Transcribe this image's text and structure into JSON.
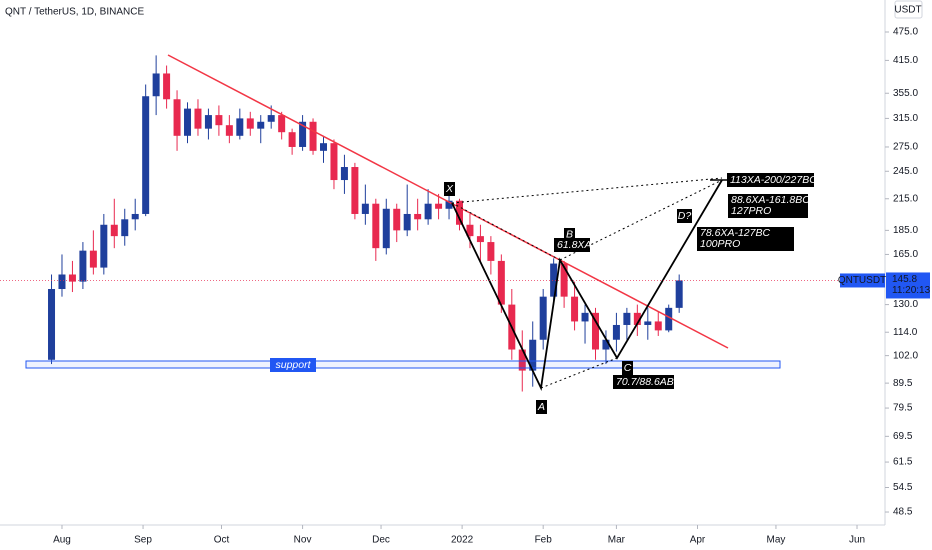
{
  "chart_data": {
    "type": "candlestick",
    "title": "QNT / TetherUS, 1D, BINANCE",
    "y_axis_label": "USDT",
    "log_scale": true,
    "grid": false,
    "up_color": "#1f3f9c",
    "down_color": "#e8294f",
    "x": [
      -4,
      0,
      4,
      8,
      12,
      16,
      20,
      24,
      28,
      32,
      36,
      40,
      44,
      48,
      52,
      56,
      60,
      64,
      68,
      72,
      76,
      80,
      84,
      88,
      92,
      96,
      100,
      104,
      108,
      112,
      116,
      120,
      124,
      128,
      132,
      136,
      140,
      144,
      148,
      152,
      156,
      160,
      164,
      168,
      172,
      176,
      180,
      184,
      188,
      192,
      196,
      200,
      204,
      208,
      212,
      216,
      220,
      224,
      228,
      232,
      236
    ],
    "open": [
      100,
      140,
      150,
      145,
      168,
      155,
      190,
      180,
      195,
      200,
      350,
      390,
      345,
      290,
      330,
      300,
      320,
      305,
      290,
      315,
      300,
      310,
      320,
      295,
      275,
      310,
      270,
      280,
      235,
      250,
      200,
      210,
      170,
      205,
      185,
      200,
      195,
      210,
      205,
      213,
      190,
      180,
      175,
      160,
      130,
      105,
      95,
      110,
      135,
      158,
      135,
      120,
      125,
      105,
      110,
      118,
      125,
      118,
      120,
      115,
      128
    ],
    "high": [
      150,
      165,
      160,
      175,
      185,
      200,
      215,
      205,
      215,
      370,
      425,
      405,
      360,
      340,
      345,
      330,
      335,
      320,
      330,
      325,
      320,
      335,
      325,
      300,
      320,
      315,
      290,
      285,
      265,
      255,
      230,
      215,
      215,
      210,
      230,
      215,
      225,
      220,
      218,
      215,
      200,
      190,
      180,
      165,
      140,
      115,
      120,
      140,
      162,
      160,
      145,
      130,
      128,
      115,
      125,
      128,
      130,
      128,
      126,
      130,
      150
    ],
    "low": [
      98,
      135,
      138,
      140,
      150,
      150,
      170,
      172,
      185,
      198,
      320,
      330,
      270,
      280,
      290,
      285,
      290,
      280,
      285,
      290,
      280,
      300,
      285,
      265,
      270,
      265,
      255,
      225,
      220,
      195,
      190,
      160,
      165,
      175,
      180,
      185,
      190,
      195,
      195,
      185,
      170,
      160,
      150,
      125,
      100,
      86,
      88,
      105,
      130,
      128,
      115,
      108,
      100,
      98,
      104,
      110,
      112,
      110,
      112,
      114,
      125
    ],
    "close": [
      140,
      150,
      145,
      168,
      155,
      190,
      180,
      195,
      200,
      350,
      390,
      345,
      290,
      330,
      300,
      320,
      305,
      290,
      315,
      300,
      310,
      320,
      295,
      275,
      310,
      270,
      280,
      235,
      250,
      200,
      210,
      170,
      205,
      185,
      200,
      195,
      210,
      205,
      213,
      190,
      180,
      175,
      160,
      130,
      105,
      95,
      110,
      135,
      158,
      135,
      120,
      125,
      105,
      110,
      118,
      125,
      118,
      120,
      115,
      128,
      145.8
    ],
    "xlim": [
      -23.7,
      314.7
    ],
    "xticks": [
      {
        "value": 0,
        "label": "Aug"
      },
      {
        "value": 31,
        "label": "Sep"
      },
      {
        "value": 61,
        "label": "Oct"
      },
      {
        "value": 92,
        "label": "Nov"
      },
      {
        "value": 122,
        "label": "Dec"
      },
      {
        "value": 153,
        "label": "2022"
      },
      {
        "value": 184,
        "label": "Feb"
      },
      {
        "value": 212,
        "label": "Mar"
      },
      {
        "value": 243,
        "label": "Apr"
      },
      {
        "value": 273,
        "label": "May"
      },
      {
        "value": 304,
        "label": "Jun"
      }
    ],
    "ylim": [
      45.6,
      553
    ],
    "yticks": [
      {
        "value": 475,
        "label": "475.0"
      },
      {
        "value": 415,
        "label": "415.0"
      },
      {
        "value": 355,
        "label": "355.0"
      },
      {
        "value": 315,
        "label": "315.0"
      },
      {
        "value": 275,
        "label": "275.0"
      },
      {
        "value": 245,
        "label": "245.0"
      },
      {
        "value": 215,
        "label": "215.0"
      },
      {
        "value": 185,
        "label": "185.0"
      },
      {
        "value": 165,
        "label": "165.0"
      },
      {
        "value": 130,
        "label": "130.0"
      },
      {
        "value": 114,
        "label": "114.0"
      },
      {
        "value": 102,
        "label": "102.0"
      },
      89.5,
      79.5,
      69.5,
      61.5,
      54.5,
      48.5
    ],
    "last_price": {
      "symbol": "QNTUSDT",
      "value": 145.8,
      "countdown": "11:20:13"
    },
    "annotations": {
      "x": "X",
      "a": "A",
      "b": "B",
      "c": "C",
      "d": "D?",
      "b_ratio": "61.8XA",
      "c_ratio": "70.7/88.6AB",
      "d_top": "113XA-200/227BC",
      "d_mid_1": "88.6XA-161.8BC",
      "d_mid_2": "127PRO",
      "d_low_1": "78.6XA-127BC",
      "d_low_2": "100PRO",
      "support": "support"
    }
  }
}
